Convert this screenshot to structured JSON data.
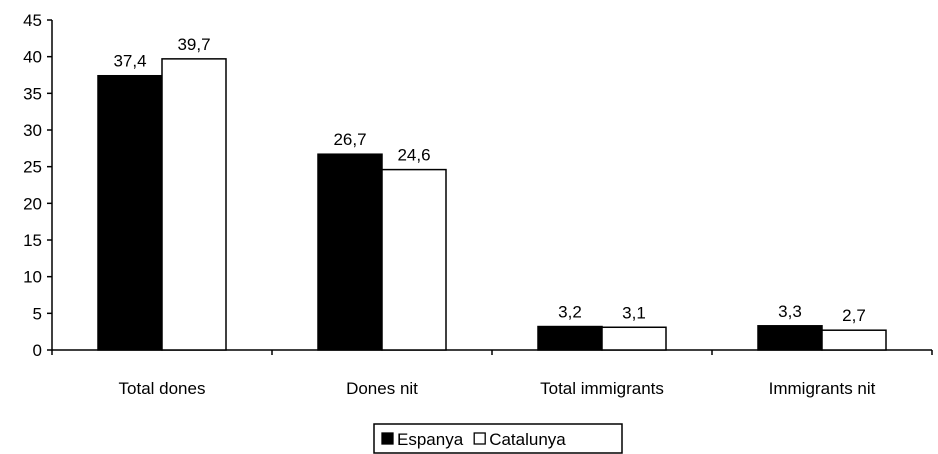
{
  "chart_data": {
    "type": "bar",
    "categories": [
      "Total dones",
      "Dones nit",
      "Total immigrants",
      "Immigrants nit"
    ],
    "series": [
      {
        "name": "Espanya",
        "values": [
          37.4,
          26.7,
          3.2,
          3.3
        ],
        "value_labels": [
          "37,4",
          "26,7",
          "3,2",
          "3,3"
        ],
        "color": "#000000"
      },
      {
        "name": "Catalunya",
        "values": [
          39.7,
          24.6,
          3.1,
          2.7
        ],
        "value_labels": [
          "39,7",
          "24,6",
          "3,1",
          "2,7"
        ],
        "color": "#ffffff"
      }
    ],
    "ylim": [
      0,
      45
    ],
    "yticks": [
      0,
      5,
      10,
      15,
      20,
      25,
      30,
      35,
      40,
      45
    ],
    "title": "",
    "xlabel": "",
    "ylabel": "",
    "grid": false,
    "legend": "bottom-center"
  }
}
